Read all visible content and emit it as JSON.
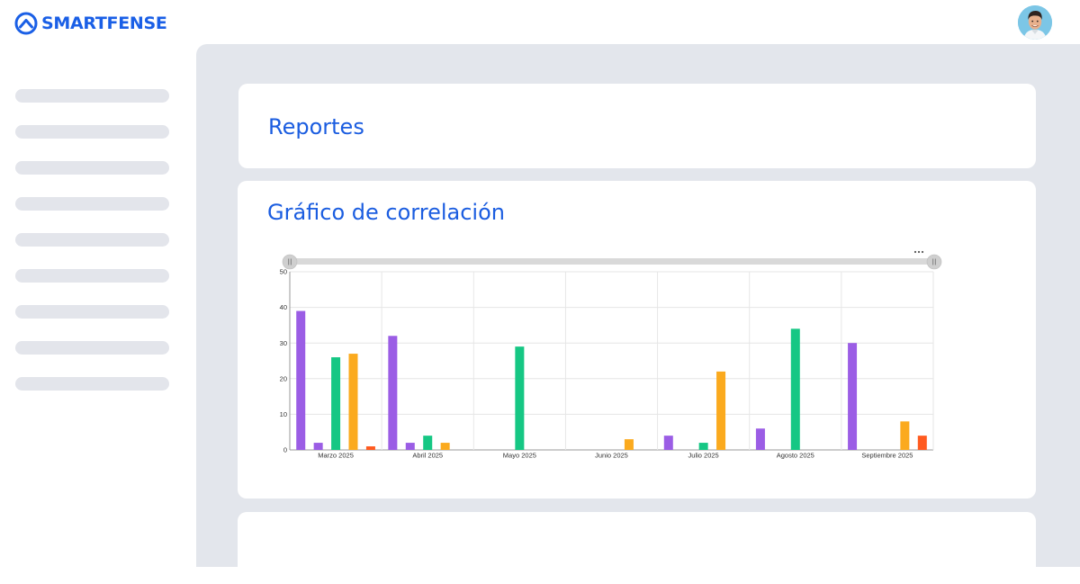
{
  "header": {
    "brand": "SMARTFENSE",
    "brand_color": "#1a5fe6",
    "logo_icon": "mountain-circle-icon",
    "avatar_icon": "user-avatar"
  },
  "sidebar": {
    "items": [
      {
        "label": ""
      },
      {
        "label": ""
      },
      {
        "label": ""
      },
      {
        "label": ""
      },
      {
        "label": ""
      },
      {
        "label": ""
      },
      {
        "label": ""
      },
      {
        "label": ""
      },
      {
        "label": ""
      }
    ]
  },
  "reports_card": {
    "title": "Reportes"
  },
  "chart_card": {
    "title": "Gráfico de correlación",
    "menu_icon": "more-horizontal-icon",
    "range_handle_icon": "drag-handle-icon"
  },
  "chart_data": {
    "type": "bar",
    "categories": [
      "Marzo 2025",
      "Abril 2025",
      "Mayo 2025",
      "Junio 2025",
      "Julio 2025",
      "Agosto 2025",
      "Septiembre 2025"
    ],
    "ylim": [
      0,
      50
    ],
    "yticks": [
      0,
      10,
      20,
      30,
      40,
      50
    ],
    "grid": true,
    "legend": "none",
    "series": [
      {
        "color": "#9b5de5",
        "values": [
          39,
          32,
          0,
          0,
          4,
          6,
          30
        ]
      },
      {
        "color": "#9b5de5",
        "values": [
          2,
          2,
          0,
          0,
          0,
          0,
          0
        ]
      },
      {
        "color": "#16c784",
        "values": [
          26,
          4,
          29,
          0,
          2,
          34,
          0
        ]
      },
      {
        "color": "#fbaa1e",
        "values": [
          27,
          2,
          0,
          3,
          22,
          0,
          8
        ]
      },
      {
        "color": "#ff5a1f",
        "values": [
          1,
          0,
          0,
          0,
          0,
          0,
          4
        ]
      }
    ]
  }
}
